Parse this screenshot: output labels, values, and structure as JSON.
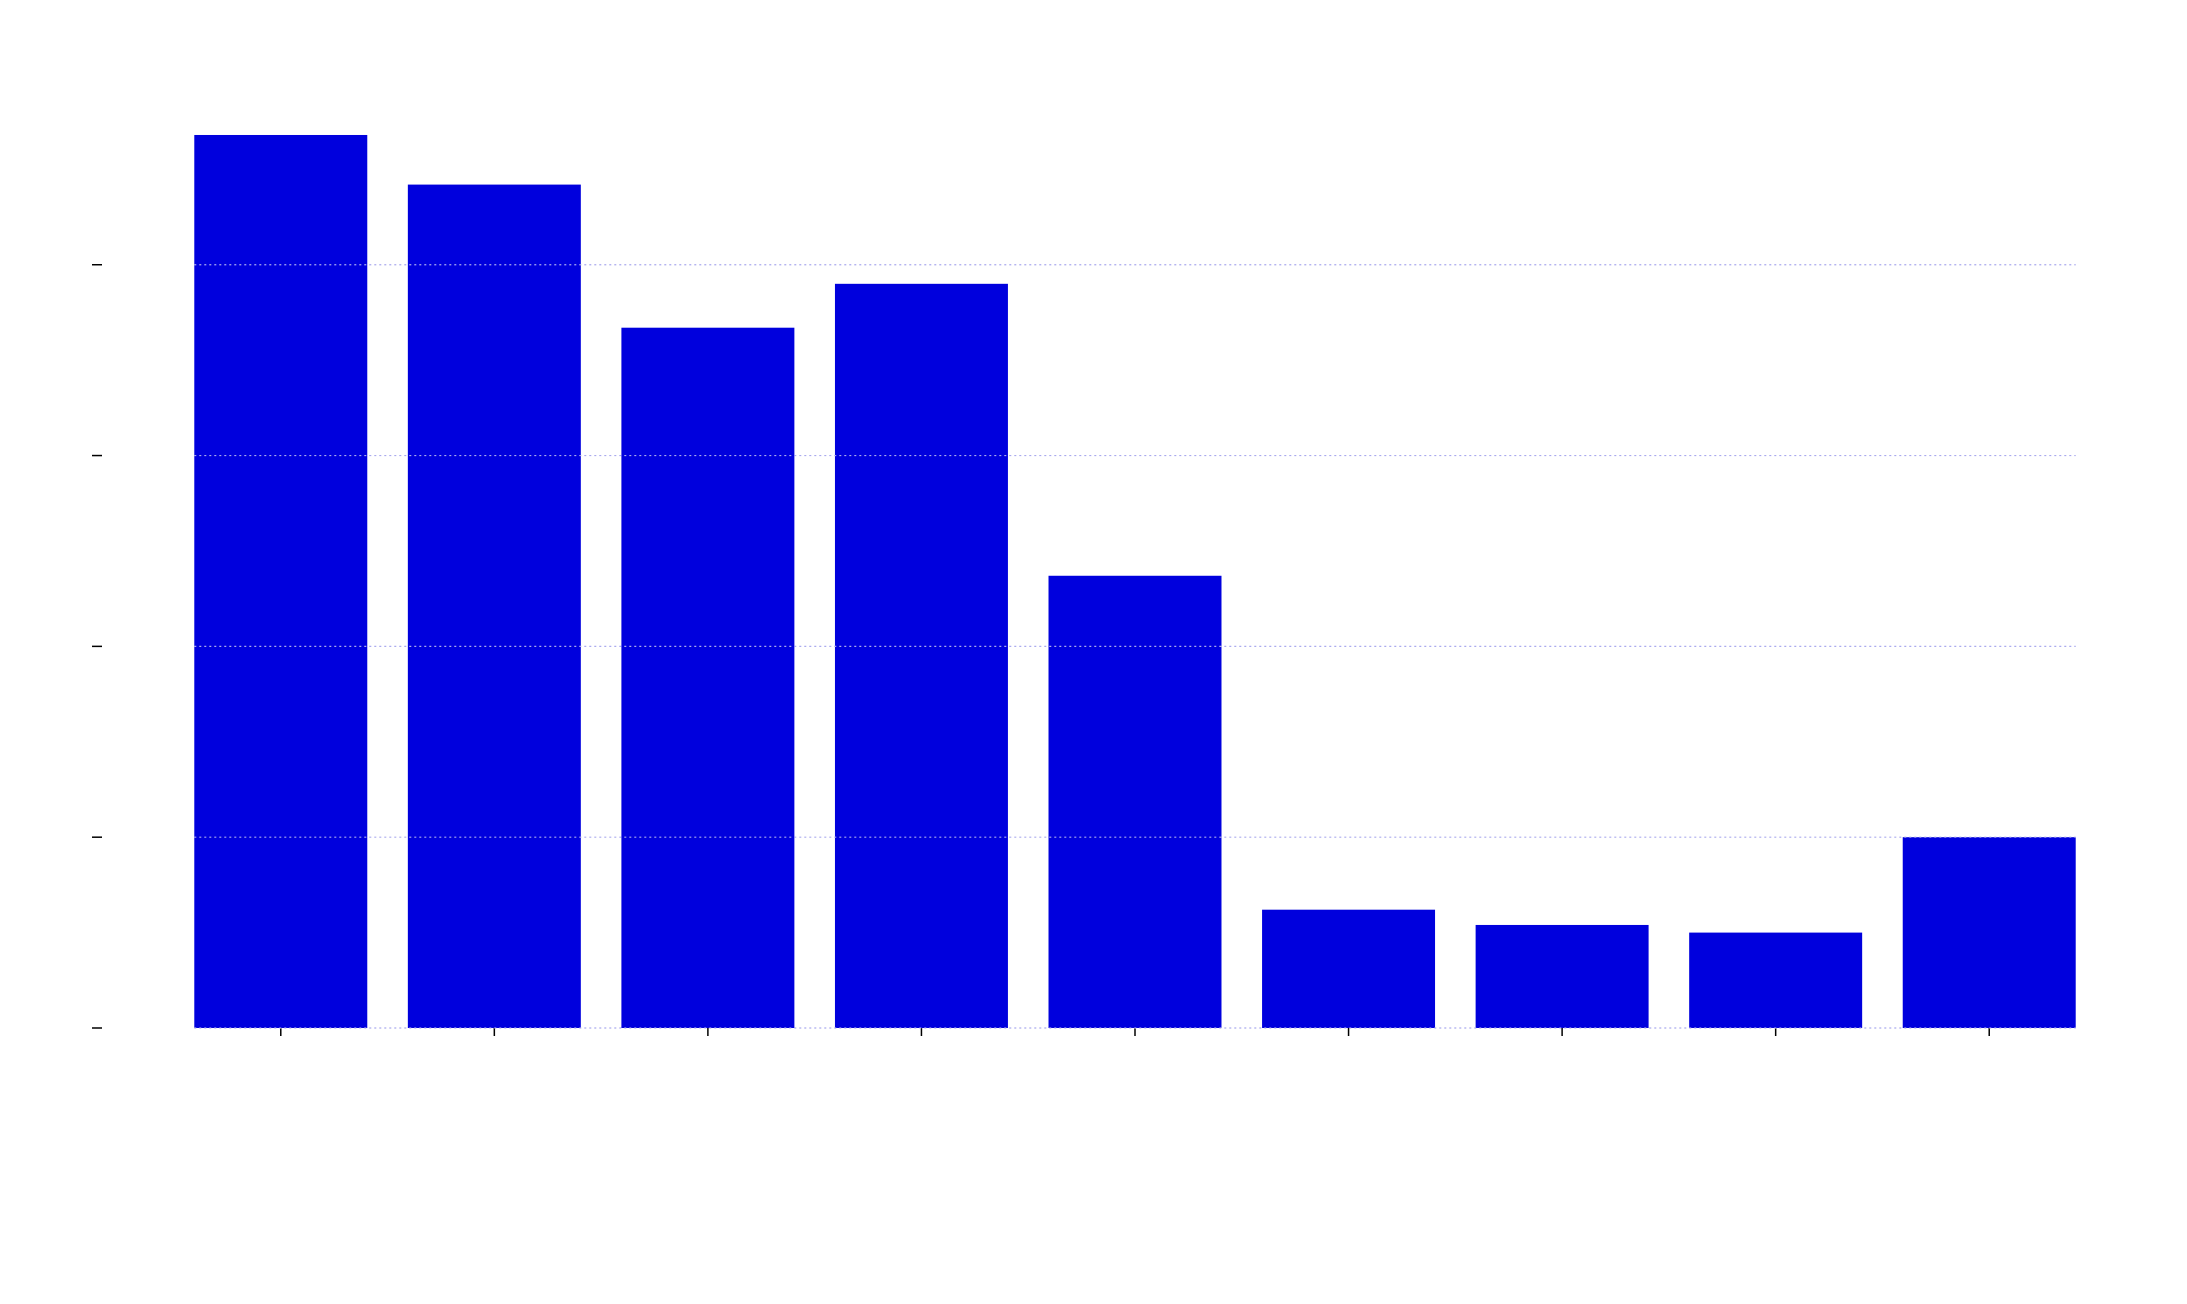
{
  "chart_data": {
    "type": "bar",
    "categories": [
      null,
      null,
      null,
      null,
      null,
      null,
      null,
      null,
      null
    ],
    "values": [
      4.68,
      4.42,
      3.67,
      3.9,
      2.37,
      0.62,
      0.54,
      0.5,
      1.0
    ],
    "color": "#0000dd",
    "ylim": [
      0,
      4.9
    ],
    "yticks": [
      0,
      1,
      2,
      3,
      4
    ],
    "grid": true
  }
}
